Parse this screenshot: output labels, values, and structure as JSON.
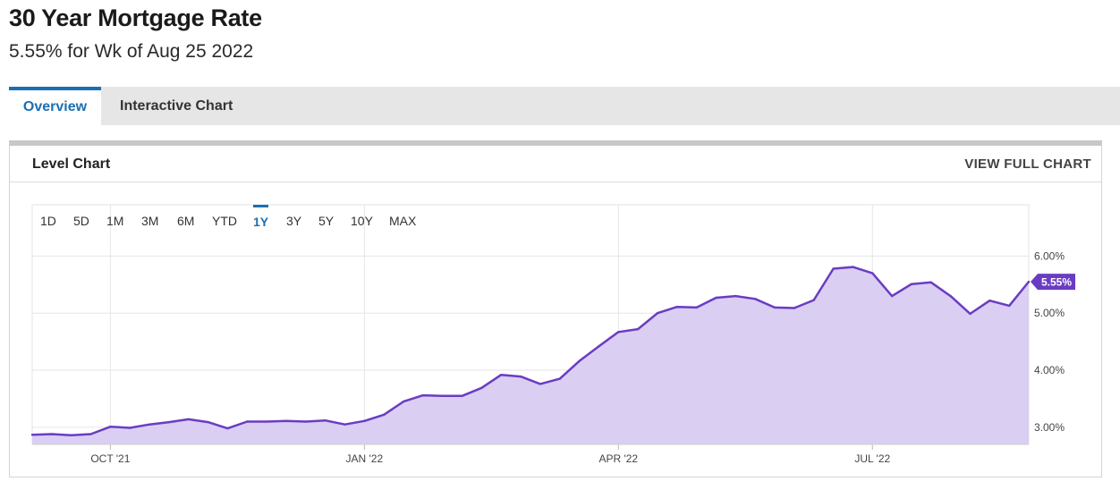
{
  "header": {
    "title": "30 Year Mortgage Rate",
    "subtitle": "5.55% for Wk of Aug 25 2022"
  },
  "tabs": [
    {
      "label": "Overview",
      "active": true
    },
    {
      "label": "Interactive Chart",
      "active": false
    }
  ],
  "panel": {
    "title": "Level Chart",
    "view_full_label": "VIEW FULL CHART"
  },
  "ranges": [
    {
      "label": "1D",
      "active": false
    },
    {
      "label": "5D",
      "active": false
    },
    {
      "label": "1M",
      "active": false
    },
    {
      "label": "3M",
      "active": false
    },
    {
      "label": "6M",
      "active": false
    },
    {
      "label": "YTD",
      "active": false
    },
    {
      "label": "1Y",
      "active": true
    },
    {
      "label": "3Y",
      "active": false
    },
    {
      "label": "5Y",
      "active": false
    },
    {
      "label": "10Y",
      "active": false
    },
    {
      "label": "MAX",
      "active": false
    }
  ],
  "colors": {
    "line": "#6a3cc4",
    "fill": "#d8ccf1",
    "accent": "#1a6fb4"
  },
  "chart_data": {
    "type": "area",
    "title": "",
    "xlabel": "",
    "ylabel": "",
    "ylim": [
      2.7,
      6.9
    ],
    "y_ticks": [
      {
        "value": 3.0,
        "label": "3.00%"
      },
      {
        "value": 4.0,
        "label": "4.00%"
      },
      {
        "value": 5.0,
        "label": "5.00%"
      },
      {
        "value": 6.0,
        "label": "6.00%"
      }
    ],
    "x_ticks": [
      {
        "index": 4,
        "label": "OCT '21"
      },
      {
        "index": 17,
        "label": "JAN '22"
      },
      {
        "index": 30,
        "label": "APR '22"
      },
      {
        "index": 43,
        "label": "JUL '22"
      }
    ],
    "grid": true,
    "last_value_label": "5.55%",
    "series": [
      {
        "values": [
          2.87,
          2.88,
          2.86,
          2.88,
          3.01,
          2.99,
          3.05,
          3.09,
          3.14,
          3.09,
          2.98,
          3.1,
          3.1,
          3.11,
          3.1,
          3.12,
          3.05,
          3.11,
          3.22,
          3.45,
          3.56,
          3.55,
          3.55,
          3.69,
          3.92,
          3.89,
          3.76,
          3.85,
          4.16,
          4.42,
          4.67,
          4.72,
          5.0,
          5.11,
          5.1,
          5.27,
          5.3,
          5.25,
          5.1,
          5.09,
          5.23,
          5.78,
          5.81,
          5.7,
          5.3,
          5.51,
          5.54,
          5.3,
          4.99,
          5.22,
          5.13,
          5.55
        ]
      }
    ]
  }
}
